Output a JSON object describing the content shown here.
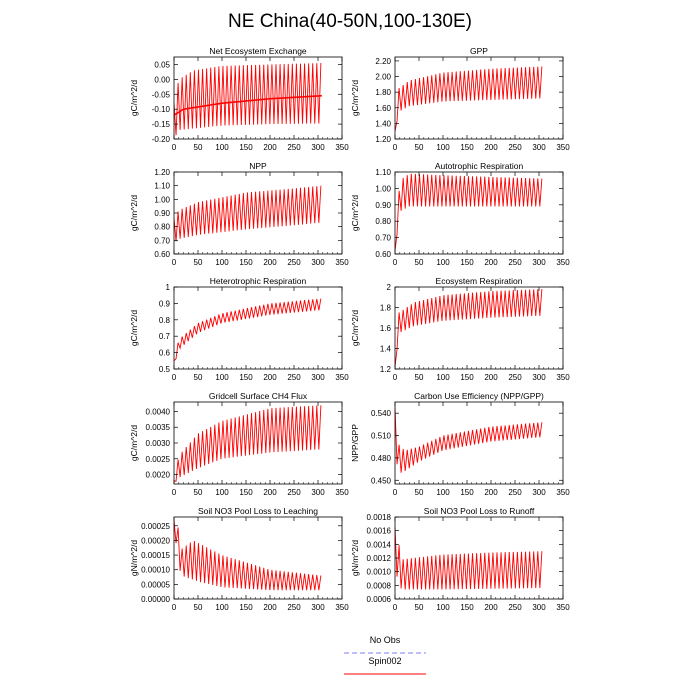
{
  "figure": {
    "title": "NE China(40-50N,100-130E)",
    "legend": [
      {
        "label": "No Obs",
        "color": "#7b7bff",
        "dash": "dashed"
      },
      {
        "label": "Spin002",
        "color": "#ff0000",
        "dash": "solid"
      }
    ]
  },
  "chart_data": [
    {
      "type": "line",
      "title": "Net Ecosystem Exchange",
      "ylabel": "gC/m^2/d",
      "xlim": [
        0,
        350
      ],
      "xticks": [
        0,
        50,
        100,
        150,
        200,
        250,
        300,
        350
      ],
      "ylim": [
        -0.2,
        0.075
      ],
      "yticks": [
        -0.2,
        -0.15,
        -0.1,
        -0.05,
        0.0,
        0.05
      ],
      "ytick_labels": [
        "-0.20",
        "-0.15",
        "-0.10",
        "-0.05",
        "0.00",
        "0.05"
      ],
      "series": [
        {
          "color": "#ff0000",
          "period": 8.5,
          "x_end": 308,
          "upper": [
            [
              0,
              -0.08
            ],
            [
              10,
              0.0
            ],
            [
              40,
              0.03
            ],
            [
              100,
              0.045
            ],
            [
              200,
              0.05
            ],
            [
              308,
              0.055
            ]
          ],
          "lower": [
            [
              0,
              -0.2
            ],
            [
              10,
              -0.17
            ],
            [
              100,
              -0.155
            ],
            [
              200,
              -0.15
            ],
            [
              308,
              -0.148
            ]
          ],
          "mean": [
            [
              0,
              -0.12
            ],
            [
              20,
              -0.1
            ],
            [
              100,
              -0.08
            ],
            [
              200,
              -0.065
            ],
            [
              308,
              -0.055
            ]
          ]
        }
      ]
    },
    {
      "type": "line",
      "title": "GPP",
      "ylabel": "gC/m^2/d",
      "xlim": [
        0,
        350
      ],
      "xticks": [
        0,
        50,
        100,
        150,
        200,
        250,
        300,
        350
      ],
      "ylim": [
        1.2,
        2.25
      ],
      "yticks": [
        1.2,
        1.4,
        1.6,
        1.8,
        2.0,
        2.2
      ],
      "ytick_labels": [
        "1.20",
        "1.40",
        "1.60",
        "1.80",
        "2.00",
        "2.20"
      ],
      "series": [
        {
          "color": "#ff0000",
          "period": 8.5,
          "x_end": 308,
          "upper": [
            [
              0,
              1.3
            ],
            [
              8,
              1.85
            ],
            [
              30,
              1.95
            ],
            [
              100,
              2.05
            ],
            [
              200,
              2.1
            ],
            [
              308,
              2.13
            ]
          ],
          "lower": [
            [
              0,
              1.3
            ],
            [
              8,
              1.55
            ],
            [
              30,
              1.62
            ],
            [
              100,
              1.68
            ],
            [
              200,
              1.7
            ],
            [
              308,
              1.72
            ]
          ]
        }
      ]
    },
    {
      "type": "line",
      "title": "NPP",
      "ylabel": "gC/m^2/d",
      "xlim": [
        0,
        350
      ],
      "xticks": [
        0,
        50,
        100,
        150,
        200,
        250,
        300,
        350
      ],
      "ylim": [
        0.6,
        1.2
      ],
      "yticks": [
        0.6,
        0.7,
        0.8,
        0.9,
        1.0,
        1.1,
        1.2
      ],
      "ytick_labels": [
        "0.60",
        "0.70",
        "0.80",
        "0.90",
        "1.00",
        "1.10",
        "1.20"
      ],
      "series": [
        {
          "color": "#ff0000",
          "period": 8.5,
          "x_end": 308,
          "upper": [
            [
              0,
              0.86
            ],
            [
              10,
              0.92
            ],
            [
              50,
              0.98
            ],
            [
              150,
              1.05
            ],
            [
              250,
              1.08
            ],
            [
              308,
              1.1
            ]
          ],
          "lower": [
            [
              0,
              0.68
            ],
            [
              10,
              0.71
            ],
            [
              50,
              0.74
            ],
            [
              150,
              0.78
            ],
            [
              250,
              0.81
            ],
            [
              308,
              0.83
            ]
          ]
        }
      ]
    },
    {
      "type": "line",
      "title": "Autotrophic Respiration",
      "ylabel": "gC/m^2/d",
      "xlim": [
        0,
        350
      ],
      "xticks": [
        0,
        50,
        100,
        150,
        200,
        250,
        300,
        350
      ],
      "ylim": [
        0.6,
        1.1
      ],
      "yticks": [
        0.6,
        0.7,
        0.8,
        0.9,
        1.0,
        1.1
      ],
      "ytick_labels": [
        "0.60",
        "0.70",
        "0.80",
        "0.90",
        "1.00",
        "1.10"
      ],
      "series": [
        {
          "color": "#ff0000",
          "period": 8.5,
          "x_end": 308,
          "upper": [
            [
              0,
              0.62
            ],
            [
              10,
              1.05
            ],
            [
              30,
              1.09
            ],
            [
              100,
              1.08
            ],
            [
              200,
              1.07
            ],
            [
              308,
              1.06
            ]
          ],
          "lower": [
            [
              0,
              0.62
            ],
            [
              10,
              0.86
            ],
            [
              30,
              0.89
            ],
            [
              100,
              0.89
            ],
            [
              200,
              0.89
            ],
            [
              308,
              0.89
            ]
          ]
        }
      ]
    },
    {
      "type": "line",
      "title": "Heterotrophic Respiration",
      "ylabel": "gC/m^2/d",
      "xlim": [
        0,
        350
      ],
      "xticks": [
        0,
        50,
        100,
        150,
        200,
        250,
        300,
        350
      ],
      "ylim": [
        0.5,
        1.0
      ],
      "yticks": [
        0.5,
        0.6,
        0.7,
        0.8,
        0.9,
        1.0
      ],
      "ytick_labels": [
        "0.5",
        "0.6",
        "0.7",
        "0.8",
        "0.9",
        "1"
      ],
      "series": [
        {
          "color": "#ff0000",
          "period": 8.5,
          "x_end": 308,
          "upper": [
            [
              0,
              0.55
            ],
            [
              10,
              0.68
            ],
            [
              50,
              0.78
            ],
            [
              100,
              0.84
            ],
            [
              200,
              0.9
            ],
            [
              308,
              0.93
            ]
          ],
          "lower": [
            [
              0,
              0.52
            ],
            [
              10,
              0.62
            ],
            [
              50,
              0.72
            ],
            [
              100,
              0.78
            ],
            [
              200,
              0.83
            ],
            [
              308,
              0.86
            ]
          ]
        }
      ]
    },
    {
      "type": "line",
      "title": "Ecosystem Respiration",
      "ylabel": "gC/m^2/d",
      "xlim": [
        0,
        350
      ],
      "xticks": [
        0,
        50,
        100,
        150,
        200,
        250,
        300,
        350
      ],
      "ylim": [
        1.2,
        2.0
      ],
      "yticks": [
        1.2,
        1.4,
        1.6,
        1.8,
        2.0
      ],
      "ytick_labels": [
        "1.2",
        "1.4",
        "1.6",
        "1.8",
        "2"
      ],
      "series": [
        {
          "color": "#ff0000",
          "period": 8.5,
          "x_end": 308,
          "upper": [
            [
              0,
              1.22
            ],
            [
              8,
              1.75
            ],
            [
              40,
              1.85
            ],
            [
              100,
              1.92
            ],
            [
              200,
              1.96
            ],
            [
              308,
              1.98
            ]
          ],
          "lower": [
            [
              0,
              1.22
            ],
            [
              8,
              1.55
            ],
            [
              40,
              1.62
            ],
            [
              100,
              1.67
            ],
            [
              200,
              1.7
            ],
            [
              308,
              1.72
            ]
          ]
        }
      ]
    },
    {
      "type": "line",
      "title": "Gridcell Surface CH4 Flux",
      "ylabel": "gC/m^2/d",
      "xlim": [
        0,
        350
      ],
      "xticks": [
        0,
        50,
        100,
        150,
        200,
        250,
        300,
        350
      ],
      "ylim": [
        0.0017,
        0.0043
      ],
      "yticks": [
        0.002,
        0.0025,
        0.003,
        0.0035,
        0.004
      ],
      "ytick_labels": [
        "0.0020",
        "0.0025",
        "0.0030",
        "0.0035",
        "0.0040"
      ],
      "series": [
        {
          "color": "#ff0000",
          "period": 8.5,
          "x_end": 308,
          "upper": [
            [
              0,
              0.0018
            ],
            [
              10,
              0.0026
            ],
            [
              50,
              0.0033
            ],
            [
              100,
              0.0037
            ],
            [
              200,
              0.0041
            ],
            [
              308,
              0.0042
            ]
          ],
          "lower": [
            [
              0,
              0.0017
            ],
            [
              10,
              0.0019
            ],
            [
              50,
              0.0022
            ],
            [
              100,
              0.0025
            ],
            [
              200,
              0.0027
            ],
            [
              308,
              0.0028
            ]
          ]
        }
      ]
    },
    {
      "type": "line",
      "title": "Carbon Use Efficiency (NPP/GPP)",
      "ylabel": "NPP/GPP",
      "xlim": [
        0,
        350
      ],
      "xticks": [
        0,
        50,
        100,
        150,
        200,
        250,
        300,
        350
      ],
      "ylim": [
        0.445,
        0.555
      ],
      "yticks": [
        0.45,
        0.48,
        0.51,
        0.54
      ],
      "ytick_labels": [
        "0.450",
        "0.480",
        "0.510",
        "0.540"
      ],
      "series": [
        {
          "color": "#ff0000",
          "period": 8.5,
          "x_end": 308,
          "upper": [
            [
              0,
              0.548
            ],
            [
              5,
              0.5
            ],
            [
              20,
              0.49
            ],
            [
              50,
              0.495
            ],
            [
              100,
              0.51
            ],
            [
              200,
              0.522
            ],
            [
              308,
              0.528
            ]
          ],
          "lower": [
            [
              0,
              0.548
            ],
            [
              5,
              0.458
            ],
            [
              20,
              0.462
            ],
            [
              50,
              0.475
            ],
            [
              100,
              0.49
            ],
            [
              200,
              0.502
            ],
            [
              308,
              0.508
            ]
          ]
        }
      ]
    },
    {
      "type": "line",
      "title": "Soil NO3 Pool Loss to Leaching",
      "ylabel": "gN/m^2/d",
      "xlim": [
        0,
        350
      ],
      "xticks": [
        0,
        50,
        100,
        150,
        200,
        250,
        300,
        350
      ],
      "ylim": [
        0.0,
        0.00028
      ],
      "yticks": [
        0.0,
        5e-05,
        0.0001,
        0.00015,
        0.0002,
        0.00025
      ],
      "ytick_labels": [
        "0.00000",
        "0.00005",
        "0.00010",
        "0.00015",
        "0.00020",
        "0.00025"
      ],
      "series": [
        {
          "color": "#ff0000",
          "period": 8.5,
          "x_end": 308,
          "upper": [
            [
              0,
              0.00027
            ],
            [
              8,
              0.00025
            ],
            [
              15,
              0.00017
            ],
            [
              40,
              0.0002
            ],
            [
              100,
              0.00015
            ],
            [
              200,
              0.0001
            ],
            [
              308,
              8e-05
            ]
          ],
          "lower": [
            [
              0,
              0.00026
            ],
            [
              8,
              0.00013
            ],
            [
              15,
              8e-05
            ],
            [
              50,
              6e-05
            ],
            [
              100,
              4e-05
            ],
            [
              200,
              3e-05
            ],
            [
              308,
              3e-05
            ]
          ]
        }
      ]
    },
    {
      "type": "line",
      "title": "Soil NO3 Pool Loss to Runoff",
      "ylabel": "gN/m^2/d",
      "xlim": [
        0,
        350
      ],
      "xticks": [
        0,
        50,
        100,
        150,
        200,
        250,
        300,
        350
      ],
      "ylim": [
        0.0006,
        0.0018
      ],
      "yticks": [
        0.0006,
        0.0008,
        0.001,
        0.0012,
        0.0014,
        0.0016,
        0.0018
      ],
      "ytick_labels": [
        "0.0006",
        "0.0008",
        "0.0010",
        "0.0012",
        "0.0014",
        "0.0016",
        "0.0018"
      ],
      "series": [
        {
          "color": "#ff0000",
          "period": 8.5,
          "x_end": 308,
          "upper": [
            [
              0,
              0.00165
            ],
            [
              5,
              0.0015
            ],
            [
              15,
              0.00118
            ],
            [
              100,
              0.00125
            ],
            [
              200,
              0.00128
            ],
            [
              308,
              0.0013
            ]
          ],
          "lower": [
            [
              0,
              0.00165
            ],
            [
              5,
              0.0008
            ],
            [
              15,
              0.00074
            ],
            [
              100,
              0.00074
            ],
            [
              200,
              0.00075
            ],
            [
              308,
              0.00076
            ]
          ]
        }
      ]
    }
  ]
}
